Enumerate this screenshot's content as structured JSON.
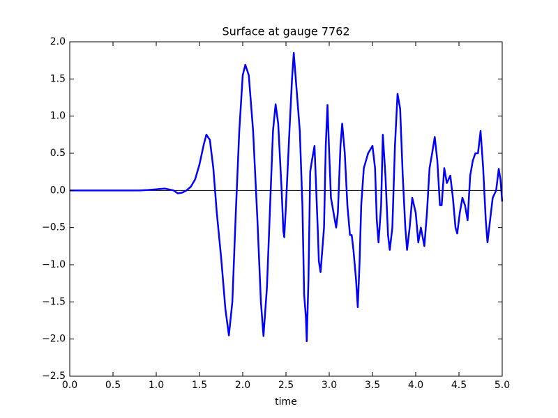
{
  "chart_data": {
    "type": "line",
    "title": "Surface at gauge 7762",
    "x_label": "time",
    "series": [
      {
        "color": "#0000ff",
        "x": [
          0.0,
          0.8,
          0.9,
          1.0,
          1.1,
          1.2,
          1.25,
          1.3,
          1.35,
          1.4,
          1.45,
          1.5,
          1.55,
          1.58,
          1.62,
          1.66,
          1.7,
          1.75,
          1.8,
          1.84,
          1.88,
          1.92,
          1.96,
          2.0,
          2.03,
          2.07,
          2.12,
          2.17,
          2.21,
          2.24,
          2.28,
          2.32,
          2.35,
          2.38,
          2.41,
          2.45,
          2.47,
          2.48,
          2.5,
          2.54,
          2.57,
          2.59,
          2.62,
          2.66,
          2.69,
          2.71,
          2.73,
          2.74,
          2.76,
          2.78,
          2.8,
          2.83,
          2.85,
          2.87,
          2.88,
          2.9,
          2.92,
          2.94,
          2.96,
          2.98,
          3.0,
          3.02,
          3.05,
          3.08,
          3.1,
          3.13,
          3.15,
          3.18,
          3.21,
          3.24,
          3.26,
          3.28,
          3.31,
          3.33,
          3.35,
          3.37,
          3.4,
          3.45,
          3.5,
          3.53,
          3.55,
          3.57,
          3.6,
          3.62,
          3.65,
          3.68,
          3.7,
          3.73,
          3.76,
          3.79,
          3.82,
          3.85,
          3.88,
          3.9,
          3.93,
          3.96,
          4.0,
          4.03,
          4.06,
          4.1,
          4.13,
          4.16,
          4.19,
          4.22,
          4.25,
          4.28,
          4.3,
          4.33,
          4.36,
          4.4,
          4.43,
          4.46,
          4.48,
          4.51,
          4.54,
          4.57,
          4.6,
          4.63,
          4.66,
          4.69,
          4.72,
          4.75,
          4.78,
          4.81,
          4.83,
          4.86,
          4.89,
          4.93,
          4.96,
          4.98,
          5.0
        ],
        "values": [
          0.0,
          0.0,
          0.005,
          0.015,
          0.025,
          0.0,
          -0.04,
          -0.03,
          0.0,
          0.05,
          0.15,
          0.35,
          0.62,
          0.75,
          0.68,
          0.3,
          -0.3,
          -0.9,
          -1.6,
          -1.95,
          -1.5,
          -0.3,
          0.8,
          1.55,
          1.69,
          1.55,
          0.8,
          -0.4,
          -1.5,
          -1.96,
          -1.3,
          -0.1,
          0.8,
          1.16,
          0.9,
          0.0,
          -0.55,
          -0.63,
          -0.2,
          0.8,
          1.5,
          1.85,
          1.4,
          0.8,
          -0.2,
          -1.4,
          -1.7,
          -2.03,
          -1.2,
          0.25,
          0.4,
          0.6,
          0.0,
          -0.6,
          -0.95,
          -1.1,
          -0.8,
          -0.5,
          0.6,
          1.15,
          0.5,
          -0.1,
          -0.3,
          -0.5,
          -0.3,
          0.6,
          0.9,
          0.5,
          -0.2,
          -0.6,
          -0.6,
          -0.8,
          -1.2,
          -1.57,
          -1.0,
          -0.2,
          0.3,
          0.5,
          0.6,
          0.3,
          -0.4,
          -0.7,
          -0.2,
          0.75,
          0.2,
          -0.6,
          -0.8,
          -0.5,
          0.6,
          1.3,
          1.1,
          0.2,
          -0.5,
          -0.8,
          -0.5,
          -0.1,
          -0.3,
          -0.7,
          -0.5,
          -0.75,
          -0.3,
          0.3,
          0.5,
          0.72,
          0.4,
          -0.2,
          -0.2,
          0.3,
          0.1,
          0.2,
          -0.1,
          -0.5,
          -0.58,
          -0.3,
          -0.1,
          -0.2,
          -0.4,
          0.2,
          0.4,
          0.5,
          0.5,
          0.8,
          0.3,
          -0.4,
          -0.7,
          -0.4,
          -0.1,
          0.0,
          0.29,
          0.15,
          -0.15
        ]
      }
    ],
    "hline": 0,
    "xlim": [
      0,
      5
    ],
    "xticks": [
      {
        "value": 0,
        "label": "0.0"
      },
      0.5,
      {
        "value": 1,
        "label": "1.0"
      },
      1.5,
      {
        "value": 2,
        "label": "2.0"
      },
      2.5,
      {
        "value": 3,
        "label": "3.0"
      },
      3.5,
      {
        "value": 4,
        "label": "4.0"
      },
      4.5,
      {
        "value": 5,
        "label": "5.0"
      }
    ],
    "ylim": [
      -2.5,
      2
    ],
    "yticks": [
      {
        "value": -2.5,
        "label": "−2.5"
      },
      {
        "value": -2,
        "label": "−2.0"
      },
      {
        "value": -1.5,
        "label": "−1.5"
      },
      {
        "value": -1,
        "label": "−1.0"
      },
      {
        "value": -0.5,
        "label": "−0.5"
      },
      {
        "value": 0,
        "label": "0.0"
      },
      0.5,
      {
        "value": 1,
        "label": "1.0"
      },
      1.5,
      {
        "value": 2,
        "label": "2.0"
      }
    ]
  }
}
